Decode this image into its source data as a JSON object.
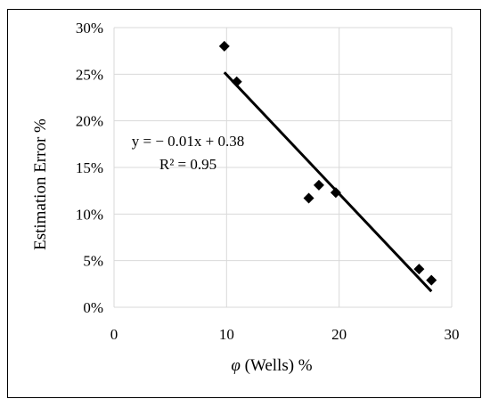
{
  "chart_data": {
    "type": "scatter",
    "xlabel": "φ (Wells) %",
    "ylabel": "Estimation Error %",
    "xlim": [
      0,
      30
    ],
    "ylim": [
      0,
      0.3
    ],
    "x_ticks": [
      0,
      10,
      20,
      30
    ],
    "x_tick_labels": [
      "0",
      "10",
      "20",
      "30"
    ],
    "y_ticks": [
      0,
      0.05,
      0.1,
      0.15,
      0.2,
      0.25,
      0.3
    ],
    "y_tick_labels": [
      "0%",
      "5%",
      "10%",
      "15%",
      "20%",
      "25%",
      "30%"
    ],
    "grid": "horizontal",
    "points": [
      {
        "x": 9.8,
        "y": 0.28
      },
      {
        "x": 10.9,
        "y": 0.242
      },
      {
        "x": 17.3,
        "y": 0.117
      },
      {
        "x": 18.2,
        "y": 0.131
      },
      {
        "x": 19.7,
        "y": 0.123
      },
      {
        "x": 27.1,
        "y": 0.041
      },
      {
        "x": 28.2,
        "y": 0.029
      }
    ],
    "trendline": {
      "x_start": 9.8,
      "y_start": 0.252,
      "x_end": 28.2,
      "y_end": 0.017
    },
    "equation": "y = − 0.01x + 0.38",
    "r_squared": "R² = 0.95",
    "marker_color": "#000000",
    "line_color": "#000000",
    "grid_color": "#d9d9d9"
  }
}
